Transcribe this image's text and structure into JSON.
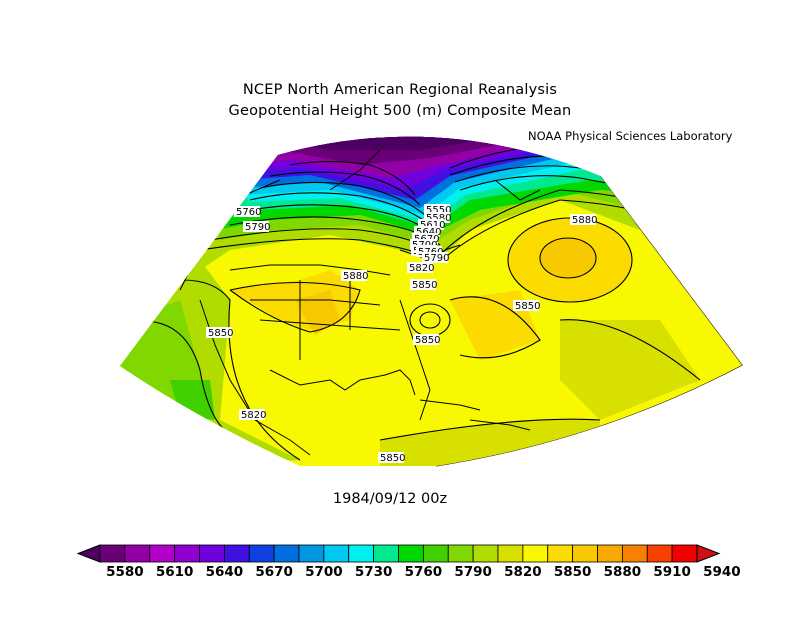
{
  "title_line1": "NCEP North American Regional Reanalysis",
  "title_line2": "Geopotential Height 500 (m) Composite Mean",
  "credit": "NOAA Physical Sciences Laboratory",
  "date": "1984/09/12 00z",
  "map": {
    "type": "contour-filled",
    "variable": "Geopotential Height 500 (m)",
    "region": "North America / Western Atlantic",
    "contour_labels": [
      "5760",
      "5790",
      "5880",
      "5550",
      "5580",
      "5610",
      "5640",
      "5670",
      "5700",
      "5730",
      "5760",
      "5790",
      "5820",
      "5850",
      "5850",
      "5850",
      "5850",
      "5820",
      "5850",
      "5880"
    ]
  },
  "colorbar": {
    "ticks": [
      "5580",
      "5610",
      "5640",
      "5670",
      "5700",
      "5730",
      "5760",
      "5790",
      "5820",
      "5850",
      "5880",
      "5910",
      "5940"
    ],
    "colors": [
      "#4c0060",
      "#6a0078",
      "#9400a8",
      "#b400c8",
      "#9000d0",
      "#7000dc",
      "#4010e0",
      "#1040e0",
      "#0070e0",
      "#0098e0",
      "#00c8f0",
      "#00f0f0",
      "#00e890",
      "#00d800",
      "#40d000",
      "#80d800",
      "#b0dc00",
      "#d8e000",
      "#f8f800",
      "#fcdc00",
      "#f8c800",
      "#f8a800",
      "#f88000",
      "#f84000",
      "#f00000",
      "#d01010"
    ]
  }
}
